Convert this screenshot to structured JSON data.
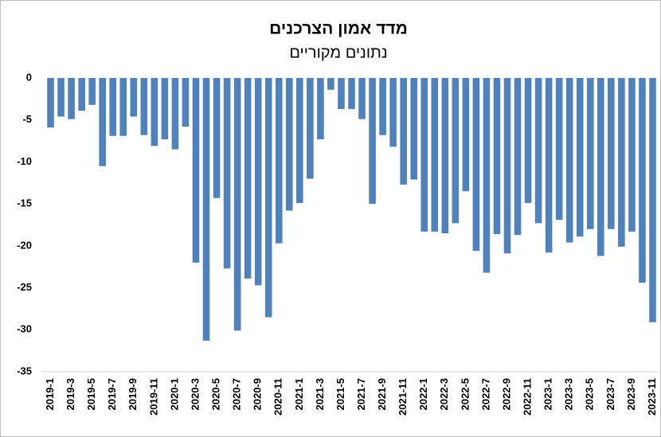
{
  "chart_data": {
    "type": "bar",
    "title": "מדד אמון הצרכנים",
    "subtitle": "נתונים מקוריים",
    "categories": [
      "2019-1",
      null,
      "2019-3",
      null,
      "2019-5",
      null,
      "2019-7",
      null,
      "2019-9",
      null,
      "2019-11",
      null,
      "2020-1",
      null,
      "2020-3",
      null,
      "2020-5",
      null,
      "2020-7",
      null,
      "2020-9",
      null,
      "2020-11",
      null,
      "2021-1",
      null,
      "2021-3",
      null,
      "2021-5",
      null,
      "2021-7",
      null,
      "2021-9",
      null,
      "2021-11",
      null,
      "2022-1",
      null,
      "2022-3",
      null,
      "2022-5",
      null,
      "2022-7",
      null,
      "2022-9",
      null,
      "2022-11",
      null,
      "2023-1",
      null,
      "2023-3",
      null,
      "2023-5",
      null,
      "2023-7",
      null,
      "2023-9",
      null,
      "2023-11"
    ],
    "values": [
      -5.9,
      -4.6,
      -4.9,
      -3.9,
      -3.2,
      -10.5,
      -6.9,
      -6.9,
      -4.6,
      -6.8,
      -8.1,
      -7.3,
      -8.5,
      -5.8,
      -22,
      -31.3,
      -14.3,
      -22.7,
      -30.1,
      -23.9,
      -24.7,
      -28.5,
      -19.7,
      -15.8,
      -14.9,
      -12,
      -7.3,
      -1.4,
      -3.7,
      -3.7,
      -4.9,
      -15,
      -6.8,
      -8.2,
      -12.7,
      -12.1,
      -18.3,
      -18.3,
      -18.5,
      -17.3,
      -13.5,
      -20.6,
      -23.2,
      -18.6,
      -20.9,
      -18.7,
      -14.9,
      -17.3,
      -20.8,
      -16.9,
      -19.6,
      -18.9,
      -18,
      -21.2,
      -18,
      -20.1,
      -18.3,
      -24.4,
      -29.1
    ],
    "color": "#4f81bd",
    "ylim": [
      -35,
      0
    ],
    "yticks": [
      -35,
      -30,
      -25,
      -20,
      -15,
      -10,
      -5,
      0
    ],
    "grid": false
  }
}
